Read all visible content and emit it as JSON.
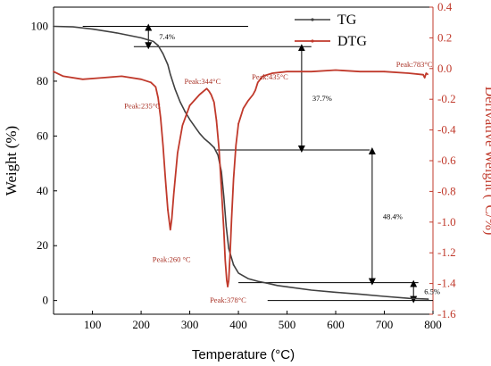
{
  "chart_data": {
    "type": "line",
    "title": "",
    "xlabel": "Temperature (°C)",
    "ylabel_left": "Weight (%)",
    "ylabel_right": "Derivative Weight (°C/%)",
    "xlim": [
      20,
      800
    ],
    "ylim_left": [
      -5,
      107
    ],
    "ylim_right": [
      -1.6,
      0.4
    ],
    "x_ticks": [
      100,
      200,
      300,
      400,
      500,
      600,
      700,
      800
    ],
    "y_left_ticks": [
      0,
      20,
      40,
      60,
      80,
      100
    ],
    "y_right_ticks": [
      0.4,
      0.2,
      0.0,
      -0.2,
      -0.4,
      -0.6,
      -0.8,
      -1.0,
      -1.2,
      -1.4,
      -1.6
    ],
    "y_right_tick_labels": [
      "0.4",
      "0.2",
      "0.0",
      "-0.2",
      "-0.4",
      "-0.6",
      "-0.8",
      "-1.0",
      "-1.2",
      "-1.4",
      "-1.6"
    ],
    "legend_position": "top-right",
    "grid": false,
    "series": [
      {
        "name": "TG",
        "axis": "left",
        "color": "#404040",
        "x": [
          20,
          60,
          100,
          150,
          200,
          225,
          235,
          245,
          255,
          260,
          270,
          280,
          290,
          300,
          310,
          320,
          330,
          340,
          350,
          358,
          365,
          370,
          375,
          380,
          390,
          400,
          420,
          440,
          460,
          480,
          500,
          550,
          600,
          650,
          700,
          750,
          790
        ],
        "y": [
          100,
          99.8,
          99.0,
          97.6,
          95.8,
          94.5,
          93.0,
          90.0,
          86.0,
          82.5,
          77.0,
          72.5,
          69.0,
          66.0,
          63.5,
          61.0,
          59.0,
          57.5,
          55.8,
          53.0,
          47.0,
          38.0,
          27.0,
          19.0,
          13.0,
          10.0,
          8.0,
          7.0,
          6.3,
          5.5,
          5.0,
          3.8,
          3.0,
          2.3,
          1.5,
          0.8,
          0.5
        ]
      },
      {
        "name": "DTG",
        "axis": "right",
        "color": "#c0392b",
        "x": [
          20,
          40,
          80,
          120,
          160,
          200,
          220,
          230,
          235,
          240,
          245,
          250,
          255,
          260,
          263,
          267,
          275,
          285,
          300,
          320,
          335,
          340,
          344,
          350,
          355,
          360,
          365,
          370,
          373,
          376,
          378,
          380,
          383,
          386,
          390,
          395,
          400,
          410,
          420,
          430,
          435,
          440,
          450,
          470,
          500,
          550,
          600,
          650,
          700,
          750,
          780,
          783,
          786,
          790
        ],
        "y": [
          -0.02,
          -0.05,
          -0.07,
          -0.06,
          -0.05,
          -0.07,
          -0.09,
          -0.12,
          -0.19,
          -0.32,
          -0.5,
          -0.72,
          -0.92,
          -1.05,
          -0.98,
          -0.82,
          -0.55,
          -0.37,
          -0.24,
          -0.17,
          -0.13,
          -0.15,
          -0.17,
          -0.22,
          -0.34,
          -0.52,
          -0.78,
          -1.05,
          -1.25,
          -1.38,
          -1.42,
          -1.38,
          -1.2,
          -0.98,
          -0.72,
          -0.5,
          -0.36,
          -0.26,
          -0.21,
          -0.17,
          -0.14,
          -0.09,
          -0.05,
          -0.03,
          -0.02,
          -0.02,
          -0.01,
          -0.02,
          -0.02,
          -0.03,
          -0.04,
          -0.06,
          -0.03,
          -0.04
        ]
      }
    ],
    "annotations": [
      {
        "text": "Peak:235°C",
        "x": 235,
        "y": -0.19,
        "axis": "right"
      },
      {
        "text": "Peak:260 °C",
        "x": 260,
        "y": -1.05,
        "axis": "right"
      },
      {
        "text": "Peak:344°C",
        "x": 344,
        "y": -0.17,
        "axis": "right"
      },
      {
        "text": "Peak:378°C",
        "x": 378,
        "y": -1.42,
        "axis": "right"
      },
      {
        "text": "Peak:435°C",
        "x": 435,
        "y": -0.14,
        "axis": "right"
      },
      {
        "text": "Peak:783°C",
        "x": 783,
        "y": -0.06,
        "axis": "right"
      }
    ],
    "weight_loss_steps": [
      {
        "text": "7.4%",
        "from": 100,
        "to": 92.6
      },
      {
        "text": "37.7%",
        "from": 92.6,
        "to": 54.9
      },
      {
        "text": "48.4%",
        "from": 54.9,
        "to": 6.5
      },
      {
        "text": "6.5%",
        "from": 6.5,
        "to": 0
      }
    ]
  }
}
